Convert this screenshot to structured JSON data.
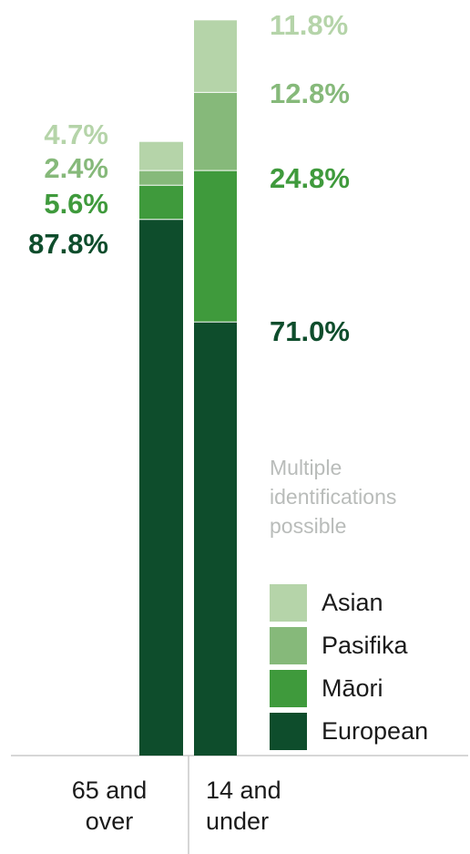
{
  "chart_data": {
    "type": "bar",
    "stacked": true,
    "categories": [
      "65 and over",
      "14 and under"
    ],
    "category_lines": [
      [
        "65 and",
        "over"
      ],
      [
        "14 and",
        "under"
      ]
    ],
    "series": [
      {
        "name": "European",
        "values": [
          87.8,
          71.0
        ],
        "labels": [
          "87.8%",
          "71.0%"
        ],
        "color": "#0e4d2c"
      },
      {
        "name": "Māori",
        "values": [
          5.6,
          24.8
        ],
        "labels": [
          "5.6%",
          "24.8%"
        ],
        "color": "#3f9a3c"
      },
      {
        "name": "Pasifika",
        "values": [
          2.4,
          12.8
        ],
        "labels": [
          "2.4%",
          "12.8%"
        ],
        "color": "#86b97a"
      },
      {
        "name": "Asian",
        "values": [
          4.7,
          11.8
        ],
        "labels": [
          "4.7%",
          "11.8%"
        ],
        "color": "#b5d4a9"
      }
    ],
    "label_colors": {
      "European": "#0e4d2c",
      "Māori": "#3f9a3c",
      "Pasifika": "#86b97a",
      "Asian": "#b5d4a9"
    },
    "note": [
      "Multiple",
      "identifications",
      "possible"
    ],
    "legend_order": [
      "Asian",
      "Pasifika",
      "Māori",
      "European"
    ],
    "legend_position": "right",
    "grid": false
  }
}
